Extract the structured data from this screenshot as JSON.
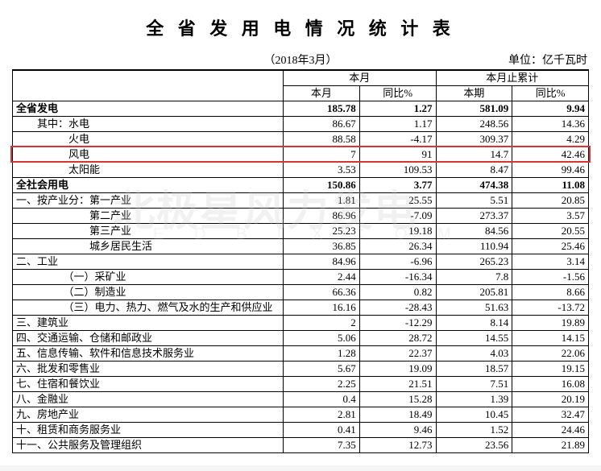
{
  "title": "全 省 发 用 电 情 况 统 计 表",
  "date_text": "（2018年3月）",
  "unit_text": "单位：亿千瓦时",
  "watermark_main": "北极星风力发电",
  "watermark_sub": "E D  B I X  C O M",
  "headers": {
    "group1": "本月",
    "group2": "本月止累计",
    "h1": "本月",
    "h2": "同比%",
    "h3": "本期",
    "h4": "同比%"
  },
  "red_highlight_index": 3,
  "rows": [
    {
      "label": "全省发电",
      "indent": 0,
      "bold": true,
      "v": [
        "185.78",
        "1.27",
        "581.09",
        "9.94"
      ]
    },
    {
      "label": "其中：水电",
      "indent": 2,
      "bold": false,
      "v": [
        "86.67",
        "1.17",
        "248.56",
        "14.36"
      ]
    },
    {
      "label": "火电",
      "indent": 5,
      "bold": false,
      "v": [
        "88.58",
        "-4.17",
        "309.37",
        "4.29"
      ]
    },
    {
      "label": "风电",
      "indent": 5,
      "bold": false,
      "v": [
        "7",
        "91",
        "14.7",
        "42.46"
      ]
    },
    {
      "label": "太阳能",
      "indent": 5,
      "bold": false,
      "v": [
        "3.53",
        "109.53",
        "8.47",
        "99.46"
      ]
    },
    {
      "label": "全社会用电",
      "indent": 0,
      "bold": true,
      "v": [
        "150.86",
        "3.77",
        "474.38",
        "11.08"
      ]
    },
    {
      "label": "一、按产业分：第一产业",
      "indent": 0,
      "bold": false,
      "v": [
        "1.81",
        "25.55",
        "5.51",
        "20.85"
      ]
    },
    {
      "label": "第二产业",
      "indent": 7,
      "bold": false,
      "v": [
        "86.96",
        "-7.09",
        "273.37",
        "3.57"
      ]
    },
    {
      "label": "第三产业",
      "indent": 7,
      "bold": false,
      "v": [
        "25.23",
        "19.18",
        "84.56",
        "20.55"
      ]
    },
    {
      "label": "城乡居民生活",
      "indent": 7,
      "bold": false,
      "v": [
        "36.85",
        "26.34",
        "110.94",
        "25.46"
      ]
    },
    {
      "label": "二、工业",
      "indent": 0,
      "bold": false,
      "v": [
        "84.96",
        "-6.96",
        "265.23",
        "3.14"
      ]
    },
    {
      "label": "（一）采矿业",
      "indent": 5,
      "bold": false,
      "v": [
        "2.44",
        "-16.34",
        "7.8",
        "-1.56"
      ]
    },
    {
      "label": "（二）制造业",
      "indent": 5,
      "bold": false,
      "v": [
        "66.36",
        "0.82",
        "205.81",
        "8.66"
      ]
    },
    {
      "label": "（三）电力、热力、燃气及水的生产和供应业",
      "indent": 5,
      "bold": false,
      "v": [
        "16.16",
        "-28.43",
        "51.63",
        "-13.72"
      ]
    },
    {
      "label": "三、建筑业",
      "indent": 0,
      "bold": false,
      "v": [
        "2",
        "-12.29",
        "8.14",
        "19.89"
      ]
    },
    {
      "label": "四、交通运输、仓储和邮政业",
      "indent": 0,
      "bold": false,
      "v": [
        "5.06",
        "28.72",
        "14.55",
        "14.15"
      ]
    },
    {
      "label": "五、信息传输、软件和信息技术服务业",
      "indent": 0,
      "bold": false,
      "v": [
        "1.28",
        "22.37",
        "4.03",
        "22.06"
      ]
    },
    {
      "label": "六、批发和零售业",
      "indent": 0,
      "bold": false,
      "v": [
        "5.67",
        "19.09",
        "18.57",
        "19.15"
      ]
    },
    {
      "label": "七、住宿和餐饮业",
      "indent": 0,
      "bold": false,
      "v": [
        "2.25",
        "21.51",
        "7.51",
        "16.08"
      ]
    },
    {
      "label": "八、金融业",
      "indent": 0,
      "bold": false,
      "v": [
        "0.4",
        "15.28",
        "1.39",
        "20.19"
      ]
    },
    {
      "label": "九、房地产业",
      "indent": 0,
      "bold": false,
      "v": [
        "2.81",
        "18.49",
        "10.45",
        "32.47"
      ]
    },
    {
      "label": "十、租赁和商务服务业",
      "indent": 0,
      "bold": false,
      "v": [
        "0.41",
        "9.46",
        "1.52",
        "24.46"
      ]
    },
    {
      "label": "十一、公共服务及管理组织",
      "indent": 0,
      "bold": false,
      "v": [
        "7.35",
        "12.73",
        "23.56",
        "21.89"
      ]
    }
  ]
}
